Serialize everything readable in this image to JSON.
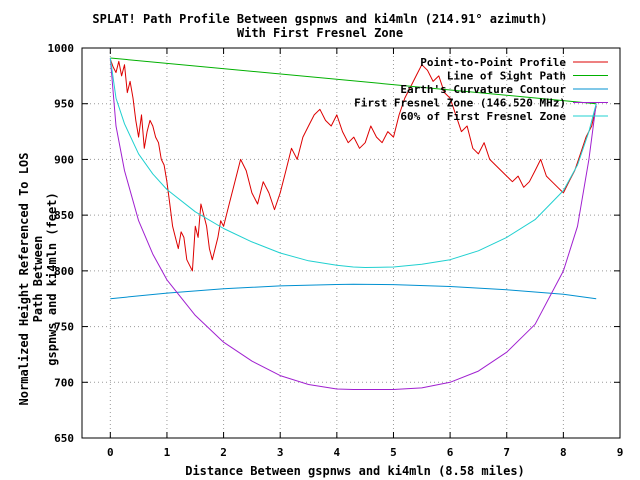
{
  "chart_data": {
    "type": "line",
    "title": "SPLAT! Path Profile Between gspnws and ki4mln (214.91° azimuth)",
    "subtitle": "With First Fresnel Zone",
    "xlabel": "Distance Between gspnws and ki4mln (8.58 miles)",
    "ylabel_line1": "Normalized Height Referenced To LOS Path Between",
    "ylabel_line2": "gspnws and ki4mln (feet)",
    "xlim": [
      -0.5,
      9
    ],
    "ylim": [
      650,
      1000
    ],
    "xticks": [
      "0",
      "1",
      "2",
      "3",
      "4",
      "5",
      "6",
      "7",
      "8",
      "9"
    ],
    "yticks": [
      "650",
      "700",
      "750",
      "800",
      "850",
      "900",
      "950",
      "1000"
    ],
    "grid": true,
    "legend_position": "top-right",
    "series": [
      {
        "name": "Point-to-Point Profile",
        "color": "#dd0000",
        "x": [
          0,
          0.05,
          0.1,
          0.15,
          0.2,
          0.25,
          0.3,
          0.35,
          0.4,
          0.45,
          0.5,
          0.55,
          0.6,
          0.65,
          0.7,
          0.75,
          0.8,
          0.85,
          0.9,
          0.95,
          1.0,
          1.05,
          1.1,
          1.15,
          1.2,
          1.25,
          1.3,
          1.35,
          1.4,
          1.45,
          1.5,
          1.55,
          1.6,
          1.65,
          1.7,
          1.75,
          1.8,
          1.85,
          1.9,
          1.95,
          2.0,
          2.05,
          2.1,
          2.2,
          2.3,
          2.4,
          2.5,
          2.6,
          2.7,
          2.8,
          2.9,
          3.0,
          3.1,
          3.2,
          3.3,
          3.4,
          3.5,
          3.6,
          3.7,
          3.8,
          3.9,
          4.0,
          4.1,
          4.2,
          4.3,
          4.4,
          4.5,
          4.6,
          4.7,
          4.8,
          4.9,
          5.0,
          5.1,
          5.2,
          5.3,
          5.4,
          5.5,
          5.6,
          5.7,
          5.8,
          5.9,
          6.0,
          6.1,
          6.2,
          6.3,
          6.4,
          6.5,
          6.6,
          6.7,
          6.8,
          6.9,
          7.0,
          7.1,
          7.2,
          7.3,
          7.4,
          7.5,
          7.6,
          7.7,
          7.8,
          7.9,
          8.0,
          8.1,
          8.2,
          8.3,
          8.4,
          8.5,
          8.58
        ],
        "values": [
          990,
          983,
          978,
          988,
          975,
          985,
          960,
          970,
          955,
          935,
          920,
          940,
          910,
          925,
          935,
          930,
          920,
          915,
          900,
          895,
          880,
          860,
          840,
          830,
          820,
          835,
          830,
          810,
          805,
          800,
          840,
          830,
          860,
          850,
          840,
          820,
          810,
          820,
          830,
          845,
          840,
          850,
          860,
          880,
          900,
          890,
          870,
          860,
          880,
          870,
          855,
          870,
          890,
          910,
          900,
          920,
          930,
          940,
          945,
          935,
          930,
          940,
          925,
          915,
          920,
          910,
          915,
          930,
          920,
          915,
          925,
          920,
          940,
          955,
          965,
          975,
          985,
          980,
          970,
          975,
          960,
          955,
          940,
          925,
          930,
          910,
          905,
          915,
          900,
          895,
          890,
          885,
          880,
          885,
          875,
          880,
          890,
          900,
          885,
          880,
          875,
          870,
          880,
          890,
          905,
          920,
          930,
          948
        ]
      },
      {
        "name": "Line of Sight Path",
        "color": "#00b000",
        "x": [
          0,
          8.58
        ],
        "values": [
          991,
          950
        ]
      },
      {
        "name": "Earth's Curvature Contour",
        "color": "#0090d0",
        "x": [
          0,
          1,
          2,
          3,
          4,
          4.29,
          5,
          6,
          7,
          8,
          8.58
        ],
        "values": [
          775,
          780,
          784,
          786.5,
          787.8,
          788,
          787.7,
          786,
          783,
          779,
          775
        ]
      },
      {
        "name": "First Fresnel Zone (146.520 MHz)",
        "color": "#a020d0",
        "x": [
          0,
          0.1,
          0.25,
          0.5,
          0.75,
          1,
          1.5,
          2,
          2.5,
          3,
          3.5,
          4,
          4.29,
          4.5,
          5,
          5.5,
          6,
          6.5,
          7,
          7.5,
          8,
          8.25,
          8.45,
          8.58
        ],
        "values": [
          991,
          930,
          890,
          845,
          815,
          792,
          760,
          736,
          719,
          706,
          698,
          694,
          693.5,
          693.5,
          693.5,
          695,
          700,
          710,
          727,
          752,
          800,
          840,
          900,
          950
        ]
      },
      {
        "name": "60% of First Fresnel Zone",
        "color": "#20d0d0",
        "x": [
          0,
          0.1,
          0.25,
          0.5,
          0.75,
          1,
          1.5,
          2,
          2.5,
          3,
          3.5,
          4,
          4.29,
          4.5,
          5,
          5.5,
          6,
          6.5,
          7,
          7.5,
          8,
          8.25,
          8.45,
          8.58
        ],
        "values": [
          991,
          955,
          932,
          905,
          887,
          873,
          853,
          838,
          826,
          816,
          809,
          805,
          803.5,
          803,
          803.5,
          806,
          810,
          818,
          830,
          846,
          872,
          895,
          925,
          950
        ]
      }
    ]
  }
}
